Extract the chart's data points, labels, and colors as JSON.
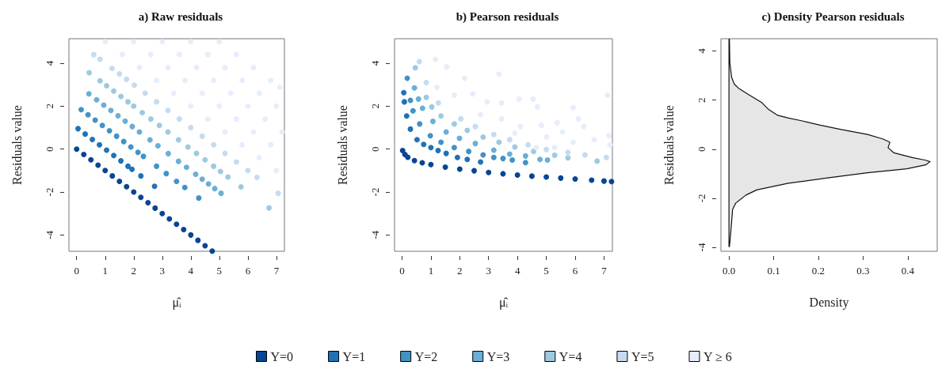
{
  "chart_data": [
    {
      "type": "scatter",
      "title": "a) Raw residuals",
      "xlabel": "μ̂ᵢ",
      "ylabel": "Residuals value",
      "xlim": [
        -0.27,
        7.28
      ],
      "ylim": [
        -4.76,
        5.14
      ],
      "xticks": [
        0,
        1,
        2,
        3,
        4,
        5,
        6,
        7
      ],
      "yticks": [
        -4,
        -2,
        0,
        2,
        4
      ],
      "grid": false,
      "legend": false,
      "marker": "circle",
      "series": [
        {
          "color": "#084594",
          "x": [
            0,
            0.25,
            0.5,
            0.75,
            1,
            1.25,
            1.5,
            1.75,
            2,
            2.25,
            2.5,
            2.75,
            3,
            3.25,
            3.5,
            3.75,
            4,
            4.25,
            4.5,
            4.75
          ],
          "values": [
            0,
            -0.25,
            -0.5,
            -0.75,
            -1,
            -1.25,
            -1.5,
            -1.75,
            -2,
            -2.25,
            -2.5,
            -2.75,
            -3,
            -3.25,
            -3.5,
            -3.75,
            -4,
            -4.25,
            -4.5,
            -4.75
          ]
        },
        {
          "color": "#2171b5",
          "x": [
            0.05,
            0.3,
            0.55,
            0.8,
            1.05,
            1.3,
            1.55,
            1.8,
            1.94,
            2.25,
            2.73
          ],
          "values": [
            0.95,
            0.7,
            0.45,
            0.2,
            -0.05,
            -0.3,
            -0.55,
            -0.8,
            -0.94,
            -1.25,
            -1.73
          ]
        },
        {
          "color": "#4292c6",
          "x": [
            0.16,
            0.4,
            0.65,
            0.9,
            1.15,
            1.4,
            1.65,
            1.9,
            2.15,
            2.34,
            2.8,
            3.14,
            3.5,
            3.79,
            4.28
          ],
          "values": [
            1.84,
            1.6,
            1.35,
            1.1,
            0.85,
            0.6,
            0.35,
            0.1,
            -0.15,
            -0.34,
            -0.8,
            -1.14,
            -1.5,
            -1.79,
            -2.28
          ]
        },
        {
          "color": "#6baed6",
          "x": [
            0.43,
            0.7,
            0.95,
            1.2,
            1.45,
            1.7,
            1.95,
            2.2,
            2.57,
            2.85,
            3.21,
            3.57,
            3.85,
            4.17,
            4.4,
            4.62,
            4.84,
            5.06
          ],
          "values": [
            2.57,
            2.3,
            2.05,
            1.8,
            1.55,
            1.3,
            1.05,
            0.8,
            0.43,
            0.15,
            -0.21,
            -0.57,
            -0.85,
            -1.17,
            -1.4,
            -1.62,
            -1.84,
            -2.06
          ]
        },
        {
          "color": "#9ecae1",
          "x": [
            0.44,
            0.82,
            1.05,
            1.3,
            1.55,
            1.8,
            2.0,
            2.3,
            2.6,
            2.9,
            3.2,
            3.57,
            3.9,
            4.2,
            4.5,
            4.8,
            5.04,
            5.3,
            5.76,
            6.74
          ],
          "values": [
            3.56,
            3.18,
            2.95,
            2.7,
            2.45,
            2.2,
            2.0,
            1.7,
            1.4,
            1.1,
            0.8,
            0.43,
            0.1,
            -0.2,
            -0.5,
            -0.8,
            -1.04,
            -1.3,
            -1.76,
            -2.74
          ]
        },
        {
          "color": "#c6dbef",
          "x": [
            0.6,
            0.82,
            1.24,
            1.5,
            1.75,
            2.02,
            2.4,
            2.8,
            3.2,
            3.6,
            4.0,
            4.4,
            4.8,
            5.2,
            5.6,
            6.0,
            6.32,
            7.06
          ],
          "values": [
            4.4,
            4.18,
            3.76,
            3.5,
            3.25,
            2.98,
            2.6,
            2.2,
            1.8,
            1.4,
            1.0,
            0.6,
            0.2,
            -0.2,
            -0.6,
            -1.0,
            -1.32,
            -2.06
          ]
        },
        {
          "color": "#e6edfb",
          "x": [
            1.0,
            1.6,
            2.2,
            2.8,
            3.4,
            4.0,
            4.6,
            5.2,
            5.8,
            6.4,
            7.0,
            2.0,
            2.6,
            3.2,
            3.8,
            4.4,
            5.0,
            5.6,
            6.2,
            6.8,
            3.0,
            3.6,
            4.2,
            4.8,
            5.4,
            6.0,
            6.6,
            7.2,
            4.0,
            4.6,
            5.2,
            5.8,
            6.4,
            7.0,
            5.0,
            5.6,
            6.2,
            6.8,
            7.12
          ],
          "values": [
            5,
            4.4,
            3.8,
            3.2,
            2.6,
            2,
            1.4,
            0.8,
            0.2,
            -0.4,
            -1,
            5,
            4.4,
            3.8,
            3.2,
            2.6,
            2,
            1.4,
            0.8,
            0.2,
            5,
            4.4,
            3.8,
            3.2,
            2.6,
            2,
            1.4,
            0.8,
            5,
            4.4,
            3.8,
            3.2,
            2.6,
            2,
            5,
            4.4,
            3.8,
            3.2,
            2.88
          ]
        }
      ]
    },
    {
      "type": "scatter",
      "title": "b) Pearson residuals",
      "xlabel": "μ̂ᵢ",
      "ylabel": "Residuals value",
      "xlim": [
        -0.26,
        7.29
      ],
      "ylim": [
        -4.76,
        5.14
      ],
      "xticks": [
        0,
        1,
        2,
        3,
        4,
        5,
        6,
        7
      ],
      "yticks": [
        -4,
        -2,
        0,
        2,
        4
      ],
      "grid": false,
      "legend": "bottom",
      "marker": "circle",
      "series": [
        {
          "name": "Y=0",
          "color": "#084594",
          "x": [
            0.02,
            0.1,
            0.2,
            0.43,
            0.7,
            1.0,
            1.5,
            2.0,
            2.5,
            3.0,
            3.5,
            4.0,
            4.5,
            5.0,
            5.5,
            6.0,
            6.57,
            7.0,
            7.26
          ],
          "values": [
            -0.07,
            -0.25,
            -0.38,
            -0.54,
            -0.64,
            -0.72,
            -0.84,
            -0.93,
            -1.01,
            -1.09,
            -1.15,
            -1.21,
            -1.26,
            -1.3,
            -1.35,
            -1.39,
            -1.45,
            -1.49,
            -1.51
          ]
        },
        {
          "name": "Y=1",
          "color": "#2171b5",
          "x": [
            0.06,
            0.08,
            0.16,
            0.29,
            0.52,
            0.75,
            1.0,
            1.25,
            1.53,
            1.92,
            2.26,
            2.72
          ],
          "values": [
            2.63,
            2.2,
            1.54,
            0.93,
            0.44,
            0.22,
            0.07,
            -0.07,
            -0.2,
            -0.39,
            -0.48,
            -0.6
          ]
        },
        {
          "name": "Y=2",
          "color": "#4292c6",
          "x": [
            0.18,
            0.29,
            0.38,
            0.61,
            0.98,
            1.35,
            1.81,
            2.31,
            2.81,
            3.18,
            3.5,
            3.82,
            4.28
          ],
          "values": [
            3.3,
            2.27,
            1.78,
            1.17,
            0.62,
            0.32,
            0.07,
            -0.11,
            -0.27,
            -0.39,
            -0.44,
            -0.51,
            -0.63
          ]
        },
        {
          "name": "Y=3",
          "color": "#6baed6",
          "x": [
            0.43,
            0.57,
            0.71,
            1.07,
            1.53,
            1.99,
            2.54,
            3.18,
            3.73,
            4.28,
            4.78,
            5.04
          ],
          "values": [
            2.85,
            2.33,
            1.9,
            1.29,
            0.8,
            0.5,
            0.26,
            -0.05,
            -0.23,
            -0.32,
            -0.48,
            -0.51
          ]
        },
        {
          "name": "Y=4",
          "color": "#9ecae1",
          "x": [
            0.46,
            0.84,
            1.03,
            1.35,
            1.81,
            2.26,
            2.81,
            3.36,
            3.91,
            4.56,
            5.29,
            5.75,
            6.76
          ],
          "values": [
            3.79,
            2.41,
            1.96,
            1.54,
            1.17,
            0.87,
            0.56,
            0.32,
            0.1,
            -0.11,
            -0.29,
            -0.41,
            -0.56
          ]
        },
        {
          "name": "Y=5",
          "color": "#c6dbef",
          "x": [
            0.6,
            0.84,
            1.26,
            2.04,
            2.54,
            3.18,
            3.73,
            4.37,
            5.0,
            5.75,
            6.34,
            7.08
          ],
          "values": [
            4.07,
            3.1,
            2.15,
            1.41,
            1.05,
            0.68,
            0.44,
            0.2,
            -0.02,
            -0.15,
            -0.27,
            -0.39
          ]
        },
        {
          "name": "Y ≥ 6",
          "color": "#e6edfb",
          "x": [
            1.16,
            1.55,
            2.17,
            3.36,
            2.45,
            2.95,
            3.45,
            4.05,
            4.54,
            4.69,
            5.93,
            7.12,
            2.72,
            3.45,
            4.1,
            4.83,
            5.38,
            6.11,
            6.3,
            5.01,
            5.56,
            5.93,
            6.66,
            7.17,
            7.21,
            4.65,
            5.29,
            3.91,
            1.81,
            1.21
          ],
          "values": [
            4.18,
            3.83,
            3.3,
            3.49,
            2.57,
            2.2,
            2.15,
            2.33,
            2.33,
            1.96,
            1.93,
            2.51,
            1.6,
            1.41,
            1.05,
            1.11,
            1.23,
            1.41,
            1.05,
            0.56,
            0.8,
            0.32,
            0.44,
            0.62,
            0.2,
            0.07,
            0.07,
            0.74,
            2.51,
            2.88
          ]
        }
      ]
    },
    {
      "type": "area",
      "orientation": "horizontal",
      "title": "c) Density Pearson residuals",
      "xlabel": "Density",
      "ylabel": "Residuals value",
      "xlim": [
        -0.018,
        0.466
      ],
      "ylim": [
        -4.16,
        4.5
      ],
      "xticks": [
        {
          "value": 0,
          "label": "0.0"
        },
        0.1,
        0.2,
        0.3,
        0.4
      ],
      "yticks": [
        -4,
        -2,
        0,
        2,
        4
      ],
      "grid": false,
      "legend": false,
      "series": [
        {
          "color": "#e6e6e6",
          "x": [
            4.48,
            3.51,
            2.92,
            2.65,
            2.49,
            2.22,
            1.89,
            1.63,
            1.38,
            1.27,
            1.16,
            0.98,
            0.8,
            0.6,
            0.41,
            0.28,
            0.06,
            -0.15,
            -0.34,
            -0.45,
            -0.51,
            -0.64,
            -0.8,
            -0.96,
            -1.17,
            -1.39,
            -1.55,
            -1.66,
            -1.87,
            -2.2,
            -2.46,
            -2.95,
            -3.6,
            -3.97
          ],
          "values": [
            0.001,
            0.002,
            0.006,
            0.012,
            0.021,
            0.044,
            0.074,
            0.088,
            0.109,
            0.133,
            0.162,
            0.204,
            0.251,
            0.31,
            0.345,
            0.36,
            0.356,
            0.369,
            0.41,
            0.44,
            0.45,
            0.44,
            0.398,
            0.31,
            0.221,
            0.133,
            0.091,
            0.062,
            0.038,
            0.015,
            0.008,
            0.006,
            0.003,
            0.001
          ]
        }
      ]
    }
  ]
}
